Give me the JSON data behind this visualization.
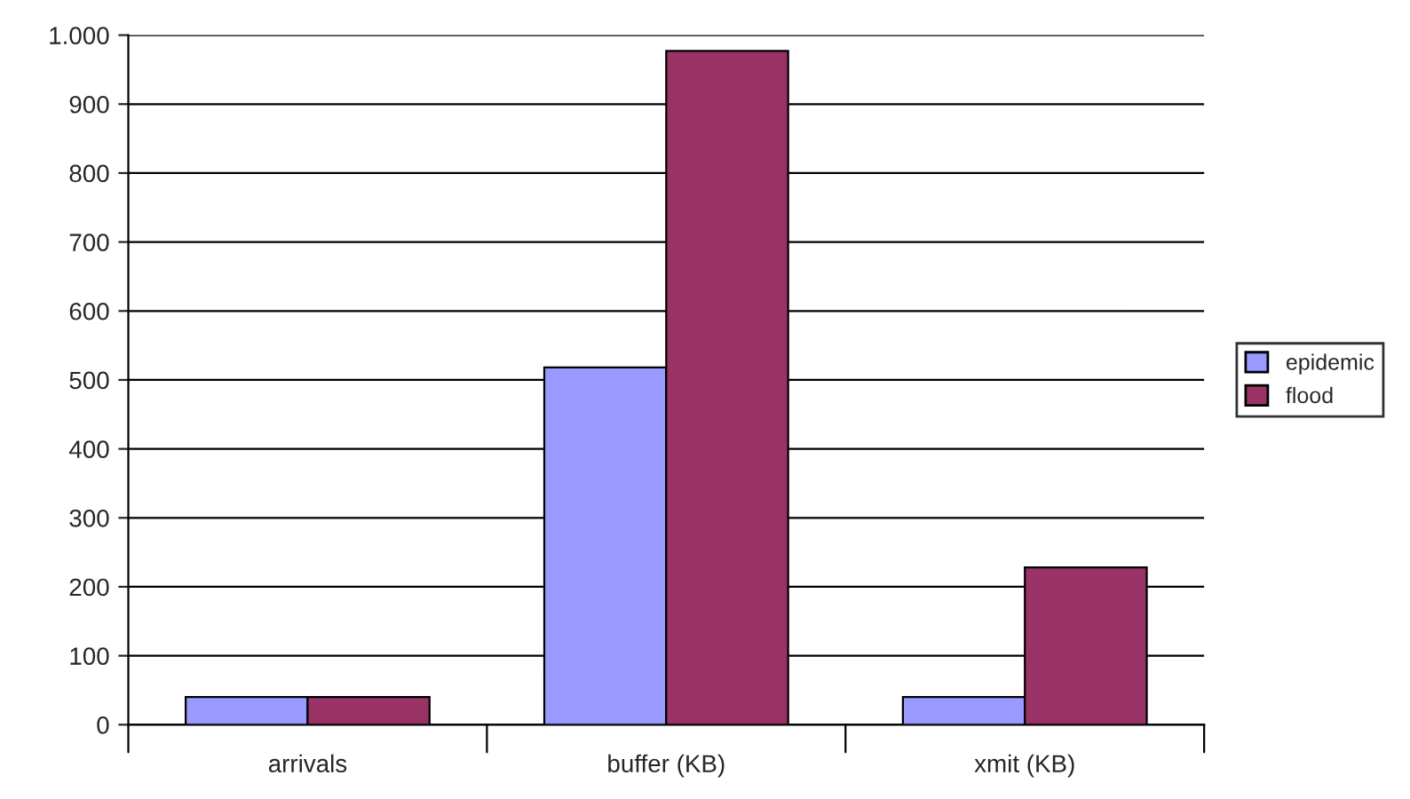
{
  "chart_data": {
    "type": "bar",
    "categories": [
      "arrivals",
      "buffer (KB)",
      "xmit (KB)"
    ],
    "series": [
      {
        "name": "epidemic",
        "color": "#9999ff",
        "values": [
          40,
          518,
          40
        ]
      },
      {
        "name": "flood",
        "color": "#993366",
        "values": [
          40,
          977,
          228
        ]
      }
    ],
    "ylim": [
      0,
      1000
    ],
    "yticks": [
      0,
      100,
      200,
      300,
      400,
      500,
      600,
      700,
      800,
      900,
      {
        "value": 1000,
        "label": "1.000"
      }
    ],
    "grid": "y",
    "legend": "right"
  }
}
